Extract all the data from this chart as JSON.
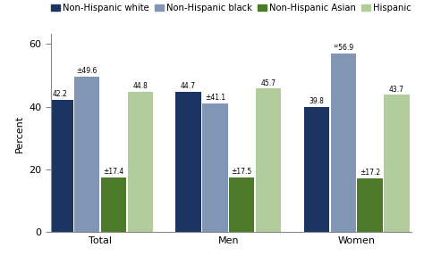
{
  "groups": [
    "Total",
    "Men",
    "Women"
  ],
  "series": [
    {
      "label": "Non-Hispanic white",
      "color": "#1c3461",
      "values": [
        42.2,
        44.7,
        39.8
      ]
    },
    {
      "label": "Non-Hispanic black",
      "color": "#8096b4",
      "values": [
        49.6,
        41.1,
        56.9
      ]
    },
    {
      "label": "Non-Hispanic Asian",
      "color": "#4d7a28",
      "values": [
        17.4,
        17.5,
        17.2
      ]
    },
    {
      "label": "Hispanic",
      "color": "#b2cc9b",
      "values": [
        44.8,
        45.7,
        43.7
      ]
    }
  ],
  "label_texts": {
    "Total": [
      "42.2",
      "±49.6",
      "±17.4",
      "44.8"
    ],
    "Men": [
      "44.7",
      "±41.1",
      "±17.5",
      "45.7"
    ],
    "Women": [
      "39.8",
      "¹²56.9",
      "±17.2",
      "43.7"
    ]
  },
  "ylabel": "Percent",
  "ylim": [
    0,
    63
  ],
  "yticks": [
    0,
    20,
    40,
    60
  ],
  "bar_width": 0.19,
  "group_centers": [
    0.42,
    1.38,
    2.34
  ],
  "background_color": "#ffffff",
  "annotation_fontsize": 5.5,
  "axis_fontsize": 8.0,
  "legend_fontsize": 7.2,
  "tick_label_fontsize": 8.0
}
